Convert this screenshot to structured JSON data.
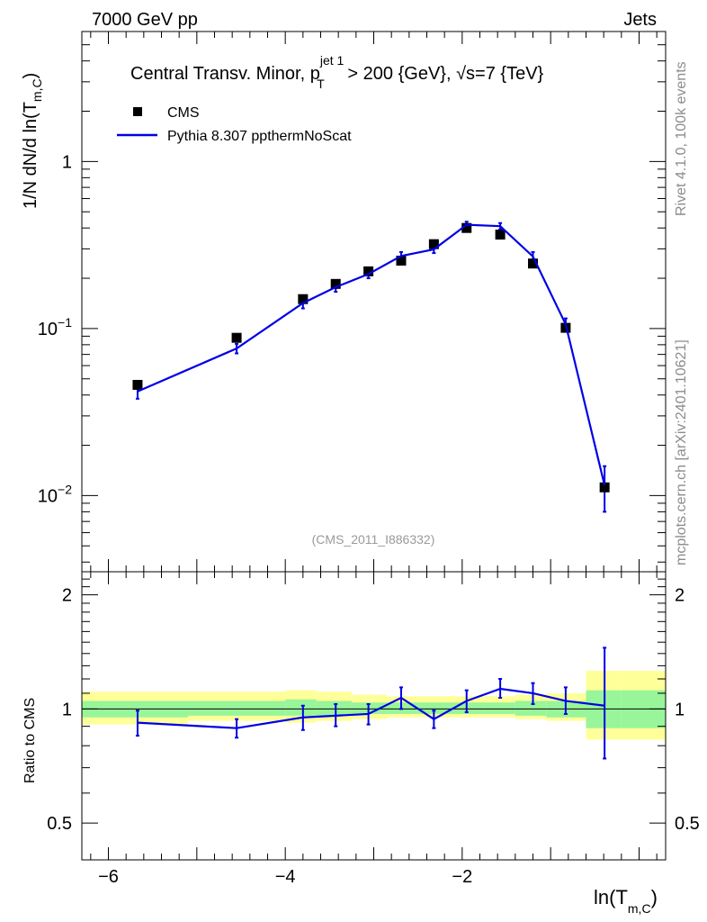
{
  "header": {
    "left": "7000 GeV pp",
    "right": "Jets"
  },
  "title": {
    "main": "Central Transv. Minor, p",
    "sup": "jet 1",
    "sub": "T",
    "rest": " > 200 {GeV}, √s=7 {TeV}"
  },
  "legend": {
    "data_label": "CMS",
    "mc_label": "Pythia 8.307 ppthermNoScat"
  },
  "watermark": "(CMS_2011_I886332)",
  "side": {
    "rivet": "Rivet 4.1.0,  100k events",
    "mcplots": "mcplots.cern.ch [arXiv:2401.10621]"
  },
  "axes": {
    "ylabel_prefix": "1/N    dN/d ln(T",
    "ylabel_sub": "m,C",
    "ylabel_suffix": ")",
    "xlabel_prefix": "ln(T",
    "xlabel_sub": "m,C",
    "xlabel_suffix": ")",
    "ratio_ylabel": "Ratio to CMS",
    "x_ticks": [
      "−6",
      "−4",
      "−2"
    ],
    "y_ticks_main": [
      {
        "base": "10",
        "exp": "−2",
        "value": 0.01
      },
      {
        "base": "10",
        "exp": "−1",
        "value": 0.1
      },
      {
        "base": "1",
        "exp": "",
        "value": 1
      }
    ],
    "y_ticks_ratio": [
      "0.5",
      "1",
      "2"
    ]
  },
  "colors": {
    "data": "#000000",
    "mc": "#0000e6",
    "band_inner": "#99f599",
    "band_outer": "#ffff99"
  },
  "chart_data": {
    "type": "line",
    "xlim": [
      -6.3,
      0.3
    ],
    "ylim": [
      0.0035,
      6.0
    ],
    "ratio_ylim": [
      0.4,
      2.3
    ],
    "yscale": "log",
    "data": {
      "name": "CMS",
      "x": [
        -5.67,
        -4.55,
        -3.8,
        -3.43,
        -3.06,
        -2.69,
        -2.32,
        -1.95,
        -1.57,
        -1.2,
        -0.83,
        -0.39
      ],
      "y": [
        0.046,
        0.088,
        0.15,
        0.185,
        0.22,
        0.255,
        0.32,
        0.4,
        0.365,
        0.245,
        0.101,
        0.0112
      ]
    },
    "mc": {
      "name": "Pythia 8.307 ppthermNoScat",
      "x": [
        -5.67,
        -4.55,
        -3.8,
        -3.43,
        -3.06,
        -2.69,
        -2.32,
        -1.95,
        -1.57,
        -1.2,
        -0.83,
        -0.39
      ],
      "y": [
        0.042,
        0.076,
        0.142,
        0.177,
        0.212,
        0.272,
        0.298,
        0.418,
        0.41,
        0.27,
        0.106,
        0.0115
      ],
      "err_lo": [
        0.038,
        0.071,
        0.132,
        0.166,
        0.2,
        0.258,
        0.283,
        0.4,
        0.392,
        0.254,
        0.097,
        0.008
      ],
      "err_hi": [
        0.046,
        0.081,
        0.152,
        0.188,
        0.224,
        0.287,
        0.313,
        0.436,
        0.428,
        0.287,
        0.115,
        0.015
      ]
    },
    "ratio": {
      "x": [
        -5.67,
        -4.55,
        -3.8,
        -3.43,
        -3.06,
        -2.69,
        -2.32,
        -1.95,
        -1.57,
        -1.2,
        -0.83,
        -0.39
      ],
      "y": [
        0.92,
        0.89,
        0.95,
        0.96,
        0.97,
        1.07,
        0.94,
        1.05,
        1.13,
        1.1,
        1.05,
        1.02
      ],
      "err_lo": [
        0.85,
        0.84,
        0.88,
        0.9,
        0.91,
        1.0,
        0.89,
        0.98,
        1.07,
        1.03,
        0.97,
        0.74
      ],
      "err_hi": [
        0.99,
        0.94,
        1.02,
        1.03,
        1.03,
        1.14,
        0.99,
        1.12,
        1.2,
        1.17,
        1.14,
        1.45
      ]
    },
    "bands": {
      "edges": [
        -6.3,
        -5.1,
        -4.0,
        -3.65,
        -3.25,
        -2.85,
        -2.5,
        -2.1,
        -1.75,
        -1.4,
        -1.05,
        -0.6,
        -0.2,
        0.3
      ],
      "inner_lo": [
        0.95,
        0.96,
        0.96,
        0.96,
        0.97,
        0.97,
        0.97,
        0.97,
        0.97,
        0.96,
        0.95,
        0.89,
        0.89
      ],
      "inner_hi": [
        1.05,
        1.05,
        1.06,
        1.05,
        1.04,
        1.04,
        1.04,
        1.04,
        1.04,
        1.05,
        1.05,
        1.12,
        1.12
      ],
      "outer_lo": [
        0.91,
        0.93,
        0.92,
        0.93,
        0.94,
        0.95,
        0.95,
        0.95,
        0.95,
        0.94,
        0.93,
        0.83,
        0.83
      ],
      "outer_hi": [
        1.11,
        1.11,
        1.12,
        1.11,
        1.09,
        1.08,
        1.08,
        1.08,
        1.08,
        1.09,
        1.1,
        1.26,
        1.26
      ]
    }
  }
}
